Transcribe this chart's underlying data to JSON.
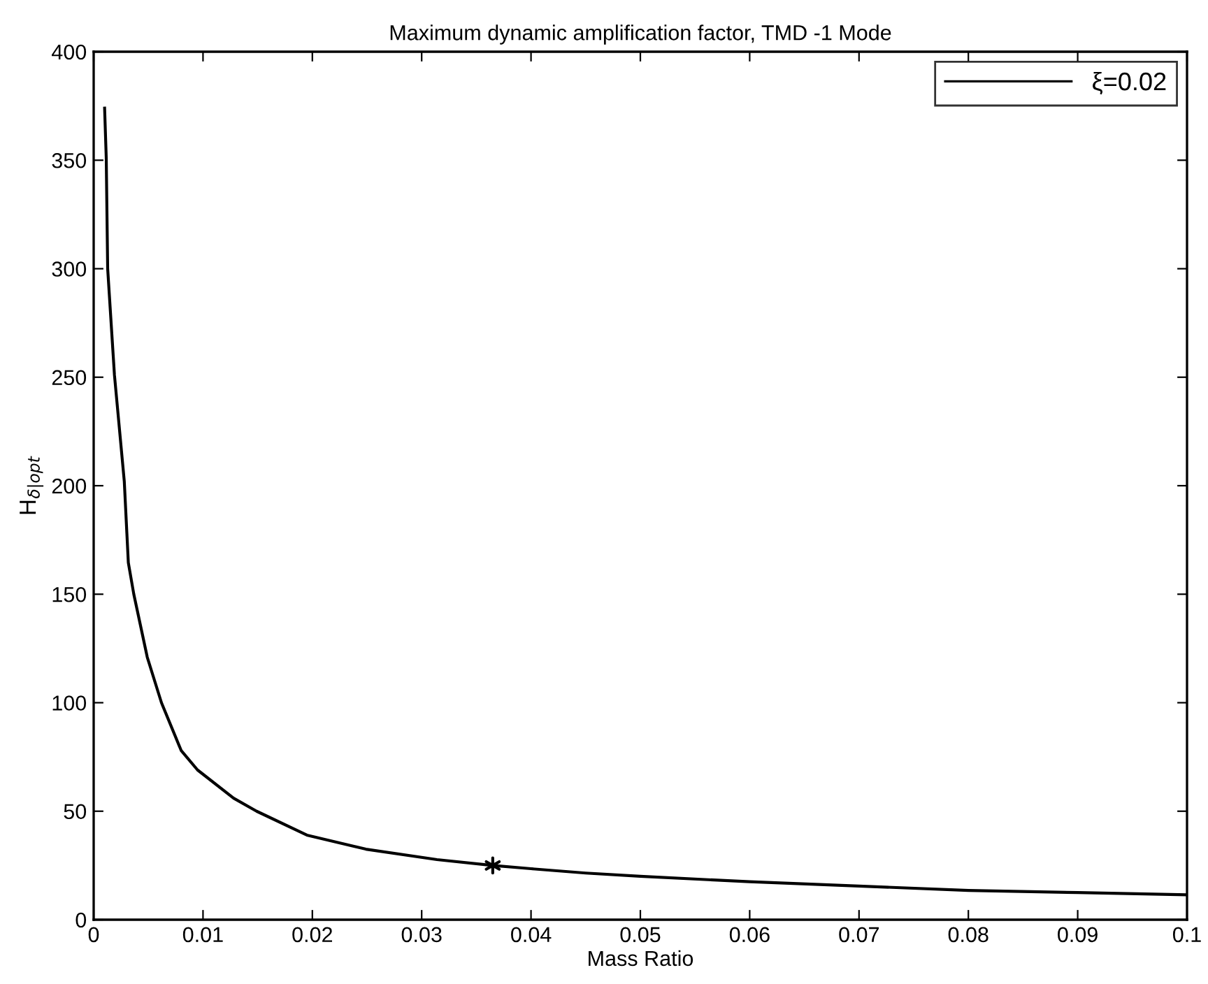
{
  "chart_data": {
    "type": "line",
    "title": "Maximum dynamic amplification factor, TMD -1 Mode",
    "xlabel": "Mass Ratio",
    "ylabel": "H$_{δ|opt}$",
    "series": [
      {
        "name": "ξ=0.02",
        "color": "#000000",
        "marker": "none",
        "line_style": "solid",
        "x": [
          0.001,
          0.00115,
          0.00128,
          0.0019,
          0.0028,
          0.00317,
          0.00367,
          0.0049,
          0.0062,
          0.008,
          0.0095,
          0.0128,
          0.0149,
          0.0195,
          0.0249,
          0.0314,
          0.0365,
          0.04,
          0.045,
          0.05,
          0.06,
          0.07,
          0.08,
          0.09,
          0.1
        ],
        "values": [
          374,
          351,
          300,
          251,
          202,
          164.5,
          150,
          121,
          100,
          78,
          69,
          56,
          50,
          39,
          32.5,
          27.7,
          25,
          23.5,
          21.5,
          20,
          17.5,
          15.5,
          13.5,
          12.5,
          11.5
        ]
      },
      {
        "color": "#000000",
        "type": "scatter",
        "marker": "cross",
        "x": [
          0.0365
        ],
        "values": [
          25
        ]
      }
    ],
    "xlim": [
      0,
      0.1
    ],
    "ylim": [
      0,
      400
    ],
    "xticks": [
      0,
      0.01,
      0.02,
      0.03,
      0.04,
      0.05,
      0.06,
      0.07,
      0.08,
      0.09,
      0.1
    ],
    "yticks": [
      0,
      50,
      100,
      150,
      200,
      250,
      300,
      350,
      400
    ],
    "grid": false,
    "legend": "top right"
  }
}
